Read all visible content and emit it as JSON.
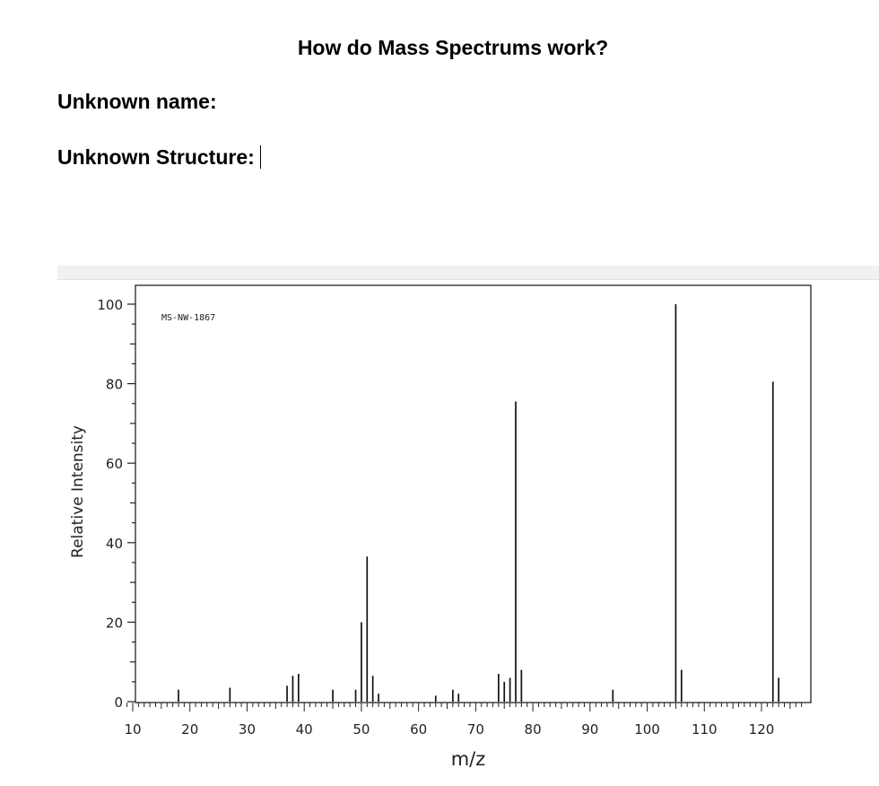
{
  "document": {
    "title": "How do Mass Spectrums work?",
    "unknown_name_label": "Unknown name:",
    "unknown_structure_label": "Unknown Structure:"
  },
  "chart_data": {
    "type": "bar",
    "annotation": "MS-NW-1867",
    "xlabel": "m/z",
    "ylabel": "Relative Intensity",
    "xlim": [
      9,
      127
    ],
    "ylim": [
      0,
      100
    ],
    "xticks": [
      10,
      20,
      30,
      40,
      50,
      60,
      70,
      80,
      90,
      100,
      110,
      120
    ],
    "yticks": [
      0,
      20,
      40,
      60,
      80,
      100
    ],
    "grid": false,
    "peaks": [
      {
        "mz": 18,
        "intensity": 3
      },
      {
        "mz": 27,
        "intensity": 3.5
      },
      {
        "mz": 37,
        "intensity": 4
      },
      {
        "mz": 38,
        "intensity": 6.5
      },
      {
        "mz": 39,
        "intensity": 7
      },
      {
        "mz": 45,
        "intensity": 3
      },
      {
        "mz": 49,
        "intensity": 3
      },
      {
        "mz": 50,
        "intensity": 20
      },
      {
        "mz": 51,
        "intensity": 36.5
      },
      {
        "mz": 52,
        "intensity": 6.5
      },
      {
        "mz": 53,
        "intensity": 2
      },
      {
        "mz": 63,
        "intensity": 1.5
      },
      {
        "mz": 66,
        "intensity": 3
      },
      {
        "mz": 67,
        "intensity": 2
      },
      {
        "mz": 74,
        "intensity": 7
      },
      {
        "mz": 75,
        "intensity": 5
      },
      {
        "mz": 76,
        "intensity": 6
      },
      {
        "mz": 77,
        "intensity": 75.5
      },
      {
        "mz": 78,
        "intensity": 8
      },
      {
        "mz": 94,
        "intensity": 3
      },
      {
        "mz": 105,
        "intensity": 100
      },
      {
        "mz": 106,
        "intensity": 8
      },
      {
        "mz": 122,
        "intensity": 80.5
      },
      {
        "mz": 123,
        "intensity": 6
      }
    ]
  }
}
